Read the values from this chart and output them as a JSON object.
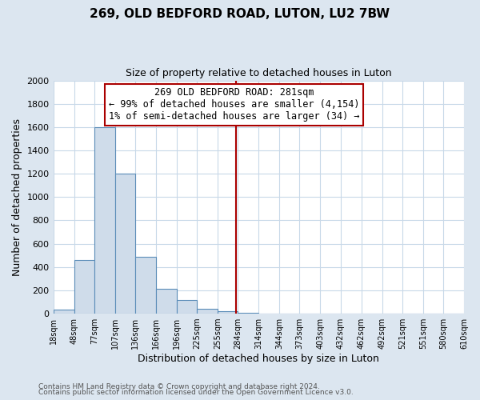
{
  "title": "269, OLD BEDFORD ROAD, LUTON, LU2 7BW",
  "subtitle": "Size of property relative to detached houses in Luton",
  "xlabel": "Distribution of detached houses by size in Luton",
  "ylabel": "Number of detached properties",
  "bar_edges": [
    18,
    48,
    77,
    107,
    136,
    166,
    196,
    225,
    255,
    284,
    314,
    344,
    373,
    403,
    432,
    462,
    492,
    521,
    551,
    580,
    610
  ],
  "bar_heights": [
    35,
    460,
    1600,
    1200,
    490,
    210,
    120,
    45,
    20,
    5,
    0,
    0,
    0,
    0,
    0,
    0,
    0,
    0,
    0,
    0
  ],
  "bar_color": "#cfdcea",
  "bar_edge_color": "#5b8db8",
  "property_line_x": 281,
  "property_line_color": "#aa0000",
  "annotation_text": "269 OLD BEDFORD ROAD: 281sqm\n← 99% of detached houses are smaller (4,154)\n1% of semi-detached houses are larger (34) →",
  "annotation_box_color": "#ffffff",
  "annotation_box_edge_color": "#aa0000",
  "ylim": [
    0,
    2000
  ],
  "yticks": [
    0,
    200,
    400,
    600,
    800,
    1000,
    1200,
    1400,
    1600,
    1800,
    2000
  ],
  "background_color": "#dce6f0",
  "plot_background_color": "#ffffff",
  "grid_color": "#c8d8e8",
  "footer_line1": "Contains HM Land Registry data © Crown copyright and database right 2024.",
  "footer_line2": "Contains public sector information licensed under the Open Government Licence v3.0."
}
